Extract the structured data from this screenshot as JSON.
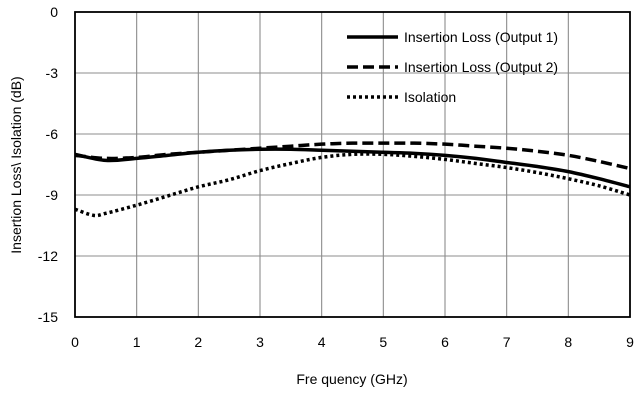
{
  "chart_data": {
    "type": "line",
    "xlabel": "Fre quency (GHz)",
    "ylabel": "Insertion Loss\\ Isolation (dB)",
    "xlim": [
      0,
      9
    ],
    "ylim": [
      -15,
      0
    ],
    "xticks": [
      "0",
      "1",
      "2",
      "3",
      "4",
      "5",
      "6",
      "7",
      "8",
      "9"
    ],
    "yticks": [
      "0",
      "3",
      "6",
      "9",
      "12",
      "15"
    ],
    "ytick_values": [
      0,
      -3,
      -6,
      -9,
      -12,
      -15
    ],
    "ytick_labels": [
      "0",
      "-3",
      "-6",
      "-9",
      "-12",
      "-15"
    ],
    "grid": true,
    "legend_position": "top-right",
    "series": [
      {
        "name": "Insertion Loss (Output 1)",
        "style": "solid",
        "color": "#000000",
        "x": [
          0,
          0.5,
          1,
          1.5,
          2,
          2.5,
          3,
          3.5,
          4,
          4.5,
          5,
          5.5,
          6,
          6.5,
          7,
          7.5,
          8,
          8.5,
          9
        ],
        "y": [
          -7.0,
          -7.3,
          -7.2,
          -7.05,
          -6.9,
          -6.8,
          -6.75,
          -6.75,
          -6.8,
          -6.85,
          -6.9,
          -6.95,
          -7.05,
          -7.2,
          -7.4,
          -7.6,
          -7.85,
          -8.2,
          -8.6
        ]
      },
      {
        "name": "Insertion Loss (Output 2)",
        "style": "dashed",
        "color": "#000000",
        "x": [
          0,
          0.5,
          1,
          1.5,
          2,
          2.5,
          3,
          3.5,
          4,
          4.5,
          5,
          5.5,
          6,
          6.5,
          7,
          7.5,
          8,
          8.5,
          9
        ],
        "y": [
          -7.05,
          -7.2,
          -7.15,
          -7.0,
          -6.9,
          -6.8,
          -6.7,
          -6.6,
          -6.5,
          -6.45,
          -6.45,
          -6.45,
          -6.5,
          -6.6,
          -6.7,
          -6.85,
          -7.05,
          -7.35,
          -7.7
        ]
      },
      {
        "name": "Isolation",
        "style": "dotted",
        "color": "#000000",
        "x": [
          0,
          0.3,
          0.5,
          1,
          1.5,
          2,
          2.5,
          3,
          3.5,
          4,
          4.5,
          5,
          5.5,
          6,
          6.5,
          7,
          7.5,
          8,
          8.5,
          9
        ],
        "y": [
          -9.7,
          -10.0,
          -9.9,
          -9.5,
          -9.05,
          -8.6,
          -8.25,
          -7.8,
          -7.45,
          -7.15,
          -7.0,
          -7.0,
          -7.1,
          -7.25,
          -7.45,
          -7.65,
          -7.9,
          -8.2,
          -8.55,
          -9.0
        ]
      }
    ]
  }
}
